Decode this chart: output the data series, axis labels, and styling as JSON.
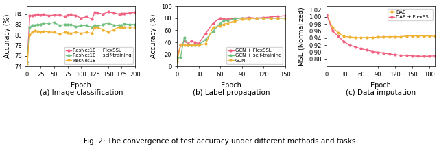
{
  "fig_width": 6.4,
  "fig_height": 2.14,
  "dpi": 100,
  "subplot_a": {
    "subtitle": "(a) Image classification",
    "xlabel": "Epoch",
    "ylabel": "Accuracy (%)",
    "xlim": [
      0,
      200
    ],
    "ylim": [
      74,
      85.5
    ],
    "yticks": [
      74,
      76,
      78,
      80,
      82,
      84
    ],
    "xticks": [
      0,
      25,
      50,
      75,
      100,
      125,
      150,
      175,
      200
    ],
    "series": {
      "ResNet18 + FlexSSL": {
        "color": "#f06080",
        "marker": "o",
        "x": [
          0,
          5,
          10,
          15,
          20,
          25,
          30,
          40,
          50,
          60,
          70,
          75,
          80,
          90,
          100,
          110,
          120,
          125,
          130,
          140,
          150,
          160,
          170,
          175,
          180,
          190,
          200
        ],
        "y": [
          74.8,
          83.7,
          83.7,
          83.8,
          83.9,
          83.8,
          83.9,
          83.7,
          83.8,
          83.8,
          83.5,
          83.8,
          83.9,
          83.7,
          83.2,
          83.5,
          83.0,
          84.3,
          84.2,
          84.0,
          84.4,
          84.2,
          84.0,
          84.1,
          84.1,
          84.2,
          84.3
        ]
      },
      "ResNet18 + self-training": {
        "color": "#70c080",
        "marker": "o",
        "x": [
          0,
          5,
          10,
          15,
          20,
          25,
          30,
          40,
          50,
          60,
          70,
          75,
          80,
          90,
          100,
          110,
          120,
          125,
          130,
          140,
          150,
          160,
          170,
          175,
          180,
          190,
          200
        ],
        "y": [
          74.8,
          81.5,
          81.8,
          81.9,
          82.0,
          82.0,
          82.3,
          82.2,
          82.4,
          81.8,
          82.0,
          82.0,
          82.0,
          81.6,
          81.8,
          81.8,
          81.5,
          81.8,
          81.7,
          82.0,
          82.3,
          81.9,
          81.8,
          81.8,
          82.1,
          82.0,
          82.0
        ]
      },
      "ResNet18": {
        "color": "#f0b030",
        "marker": "o",
        "x": [
          0,
          5,
          10,
          15,
          20,
          25,
          30,
          40,
          50,
          60,
          70,
          75,
          80,
          90,
          100,
          110,
          120,
          125,
          130,
          140,
          150,
          160,
          170,
          175,
          180,
          190,
          200
        ],
        "y": [
          74.4,
          80.0,
          80.5,
          80.8,
          80.7,
          80.6,
          80.7,
          80.6,
          80.5,
          80.2,
          80.5,
          80.4,
          80.3,
          80.5,
          80.3,
          80.5,
          80.3,
          81.5,
          81.5,
          81.0,
          80.5,
          81.0,
          81.5,
          81.5,
          81.5,
          81.5,
          81.5
        ]
      }
    }
  },
  "subplot_b": {
    "subtitle": "(b) Label propagation",
    "xlabel": "Epoch",
    "ylabel": "Accuracy (%)",
    "xlim": [
      0,
      150
    ],
    "ylim": [
      0,
      100
    ],
    "yticks": [
      0,
      20,
      40,
      60,
      80,
      100
    ],
    "xticks": [
      0,
      30,
      60,
      90,
      120,
      150
    ],
    "series": {
      "GCN + FlexSSL": {
        "color": "#f06080",
        "marker": "o",
        "x": [
          0,
          5,
          10,
          15,
          20,
          25,
          30,
          40,
          50,
          60,
          65,
          70,
          80,
          90,
          100,
          110,
          120,
          130,
          140,
          150
        ],
        "y": [
          13,
          35,
          42,
          38,
          42,
          40,
          38,
          55,
          72,
          80,
          79,
          78,
          80,
          80,
          81,
          80,
          81,
          82,
          83,
          84
        ]
      },
      "GCN + self-training": {
        "color": "#70c080",
        "marker": "o",
        "x": [
          0,
          5,
          10,
          15,
          20,
          25,
          30,
          40,
          50,
          60,
          65,
          70,
          80,
          90,
          100,
          110,
          120,
          130,
          140,
          150
        ],
        "y": [
          14,
          15,
          48,
          36,
          36,
          35,
          36,
          45,
          58,
          72,
          76,
          76,
          79,
          80,
          80,
          80,
          80,
          80,
          80,
          80
        ]
      },
      "GCN": {
        "color": "#f0b030",
        "marker": "o",
        "x": [
          0,
          5,
          10,
          15,
          20,
          25,
          30,
          40,
          50,
          60,
          65,
          70,
          80,
          90,
          100,
          110,
          120,
          130,
          140,
          150
        ],
        "y": [
          8,
          35,
          36,
          35,
          35,
          35,
          35,
          38,
          65,
          67,
          70,
          72,
          75,
          78,
          79,
          80,
          80,
          80,
          80,
          80
        ]
      }
    }
  },
  "subplot_c": {
    "subtitle": "(c) Data imputation",
    "xlabel": "Epoch",
    "ylabel": "MSE (Normalized)",
    "xlim": [
      0,
      190
    ],
    "ylim": [
      0.86,
      1.03
    ],
    "yticks": [
      0.88,
      0.9,
      0.92,
      0.94,
      0.96,
      0.98,
      1.0,
      1.02
    ],
    "xticks": [
      0,
      30,
      60,
      90,
      120,
      150,
      180
    ],
    "series": {
      "DAE": {
        "color": "#f0b030",
        "marker": "o",
        "x": [
          0,
          10,
          20,
          30,
          40,
          50,
          60,
          70,
          80,
          90,
          100,
          110,
          120,
          130,
          140,
          150,
          160,
          170,
          180,
          190
        ],
        "y": [
          1.005,
          0.97,
          0.955,
          0.945,
          0.943,
          0.942,
          0.941,
          0.942,
          0.942,
          0.943,
          0.944,
          0.944,
          0.944,
          0.944,
          0.946,
          0.946,
          0.946,
          0.946,
          0.946,
          0.945
        ]
      },
      "DAE + FlexSSL": {
        "color": "#f06080",
        "marker": "o",
        "x": [
          0,
          10,
          20,
          30,
          40,
          50,
          60,
          70,
          80,
          90,
          100,
          110,
          120,
          130,
          140,
          150,
          160,
          170,
          180,
          190
        ],
        "y": [
          1.005,
          0.96,
          0.945,
          0.93,
          0.92,
          0.915,
          0.91,
          0.906,
          0.902,
          0.9,
          0.898,
          0.895,
          0.893,
          0.892,
          0.891,
          0.89,
          0.889,
          0.889,
          0.889,
          0.89
        ]
      }
    }
  },
  "caption": "Fig. 2: The convergence of test accuracy under different methods and tasks",
  "caption_fontsize": 7.5,
  "subtitle_fontsize": 7.5,
  "label_fontsize": 7,
  "tick_fontsize": 6,
  "legend_fontsize": 5
}
